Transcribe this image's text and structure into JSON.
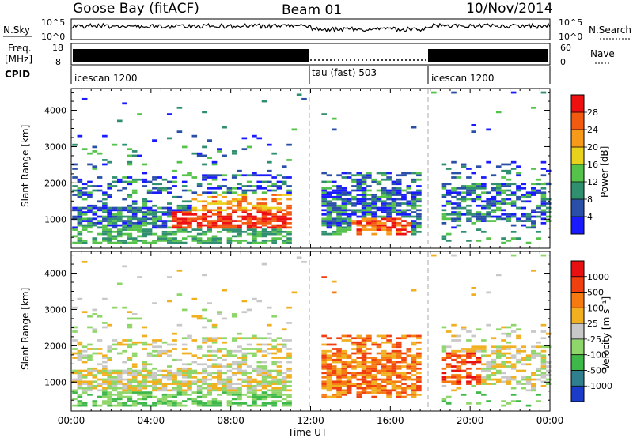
{
  "header": {
    "station": "Goose Bay (fitACF)",
    "beam": "Beam 01",
    "date": "10/Nov/2014"
  },
  "nsky": {
    "label": "N.Sky",
    "ticks": [
      "10^5",
      "10^0"
    ],
    "right_ticks": [
      "10^5",
      "10^0"
    ],
    "right_label": "N.Search"
  },
  "freq": {
    "label": "Freq.",
    "unit": "[MHz]",
    "ticks": [
      "18",
      "8"
    ],
    "right_ticks": [
      "60",
      "0"
    ],
    "right_label": "Nave"
  },
  "cpid": {
    "label": "CPID",
    "segments": [
      {
        "name": "icescan 1200",
        "start": 0,
        "end": 12
      },
      {
        "name": "tau (fast) 503",
        "start": 12,
        "end": 18
      },
      {
        "name": "icescan 1200",
        "start": 18,
        "end": 24
      }
    ]
  },
  "xaxis": {
    "label": "Time UT",
    "ticks": [
      "00:00",
      "04:00",
      "08:00",
      "12:00",
      "16:00",
      "20:00",
      "00:00"
    ]
  },
  "chart_data": [
    {
      "type": "heatmap",
      "ylabel": "Slant Range [km]",
      "yticks": [
        "1000",
        "2000",
        "3000",
        "4000"
      ],
      "ylim": [
        200,
        4600
      ],
      "xlim": [
        0,
        24
      ],
      "colorbar": {
        "label": "Power [dB]",
        "ticks": [
          "4",
          "8",
          "12",
          "16",
          "20",
          "24",
          "28"
        ],
        "colors": [
          "#1a1aff",
          "#2a4fa8",
          "#2f8f6f",
          "#55c24a",
          "#e8d21c",
          "#f79a1a",
          "#f25a10",
          "#ee1010"
        ]
      }
    },
    {
      "type": "heatmap",
      "ylabel": "Slant Range [km]",
      "yticks": [
        "1000",
        "2000",
        "3000",
        "4000"
      ],
      "ylim": [
        200,
        4600
      ],
      "xlim": [
        0,
        24
      ],
      "colorbar": {
        "label": "Velocity [m s⁻¹]",
        "ticks": [
          "1000",
          "500",
          "100",
          "25",
          "-25",
          "-100",
          "-500",
          "-1000"
        ],
        "colors": [
          "#1a3cc8",
          "#2f7f8f",
          "#3fb84a",
          "#8fd66a",
          "#c8c8c8",
          "#f0b020",
          "#f57a10",
          "#f04010",
          "#e81010"
        ]
      }
    }
  ]
}
